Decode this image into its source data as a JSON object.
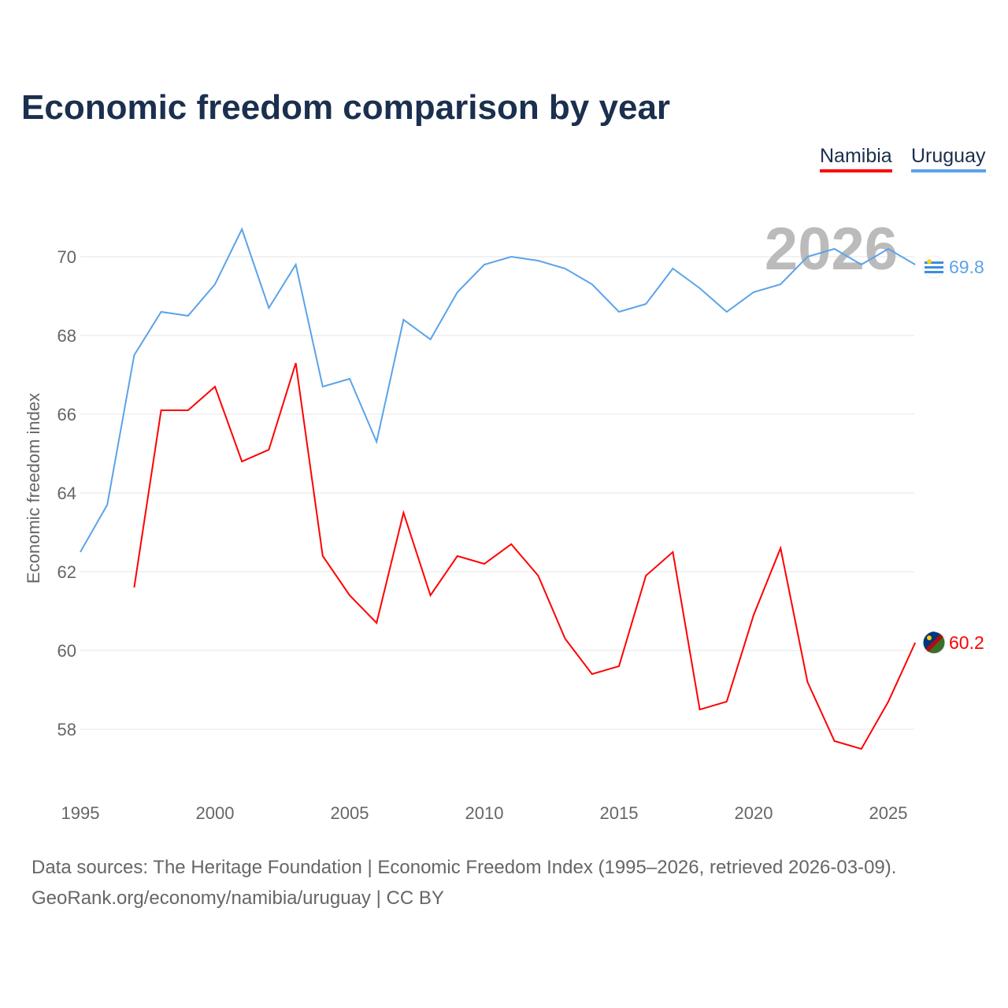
{
  "title": "Economic freedom comparison by year",
  "legend": [
    "Namibia",
    "Uruguay"
  ],
  "year_watermark": "2026",
  "footer": {
    "line1": "Data sources: The Heritage Foundation | Economic Freedom Index (1995–2026, retrieved 2026-03-09).",
    "line2": "GeoRank.org/economy/namibia/uruguay | CC BY"
  },
  "chart_data": {
    "type": "line",
    "ylabel": "Economic freedom index",
    "xlim": [
      1995,
      2026
    ],
    "ylim": [
      56.5,
      71.5
    ],
    "xticks": [
      1995,
      2000,
      2005,
      2010,
      2015,
      2020,
      2025
    ],
    "yticks": [
      58,
      60,
      62,
      64,
      66,
      68,
      70
    ],
    "grid": true,
    "legend_position": "top-right",
    "series": [
      {
        "name": "Namibia",
        "color": "#ff0000",
        "end_label": "60.2",
        "start_year": 1997,
        "values": [
          61.6,
          66.1,
          66.1,
          66.7,
          64.8,
          65.1,
          67.3,
          62.4,
          61.4,
          60.7,
          63.5,
          61.4,
          62.4,
          62.2,
          62.7,
          61.9,
          60.3,
          59.4,
          59.6,
          61.9,
          62.5,
          58.5,
          58.7,
          60.9,
          62.6,
          59.2,
          57.7,
          57.5,
          58.7,
          60.2
        ]
      },
      {
        "name": "Uruguay",
        "color": "#5ba3e8",
        "end_label": "69.8",
        "start_year": 1995,
        "values": [
          62.5,
          63.7,
          67.5,
          68.6,
          68.5,
          69.3,
          70.7,
          68.7,
          69.8,
          66.7,
          66.9,
          65.3,
          68.4,
          67.9,
          69.1,
          69.8,
          70.0,
          69.9,
          69.7,
          69.3,
          68.6,
          68.8,
          69.7,
          69.2,
          68.6,
          69.1,
          69.3,
          70.0,
          70.2,
          69.8,
          70.2,
          69.8
        ]
      }
    ]
  }
}
